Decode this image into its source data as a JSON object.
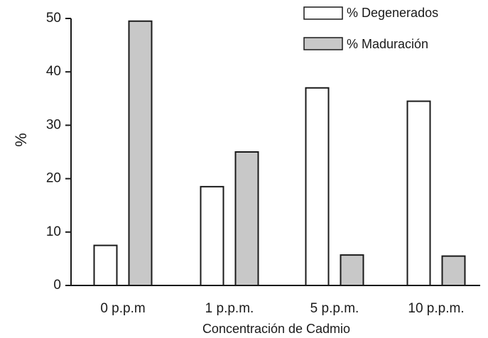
{
  "chart_data": {
    "type": "bar",
    "categories": [
      "0 p.p.m",
      "1 p.p.m.",
      "5 p.p.m.",
      "10 p.p.m."
    ],
    "series": [
      {
        "name": "% Degenerados",
        "values": [
          7.5,
          18.5,
          37,
          34.5
        ],
        "color": "#ffffff"
      },
      {
        "name": "% Maduración",
        "values": [
          49.5,
          25,
          5.7,
          5.5
        ],
        "color": "#c8c8c8"
      }
    ],
    "xlabel": "Concentración de Cadmio",
    "ylabel": "%",
    "ylim": [
      0,
      50
    ],
    "yticks": [
      0,
      10,
      20,
      30,
      40,
      50
    ],
    "grid": false,
    "legend_position": "top-right"
  }
}
